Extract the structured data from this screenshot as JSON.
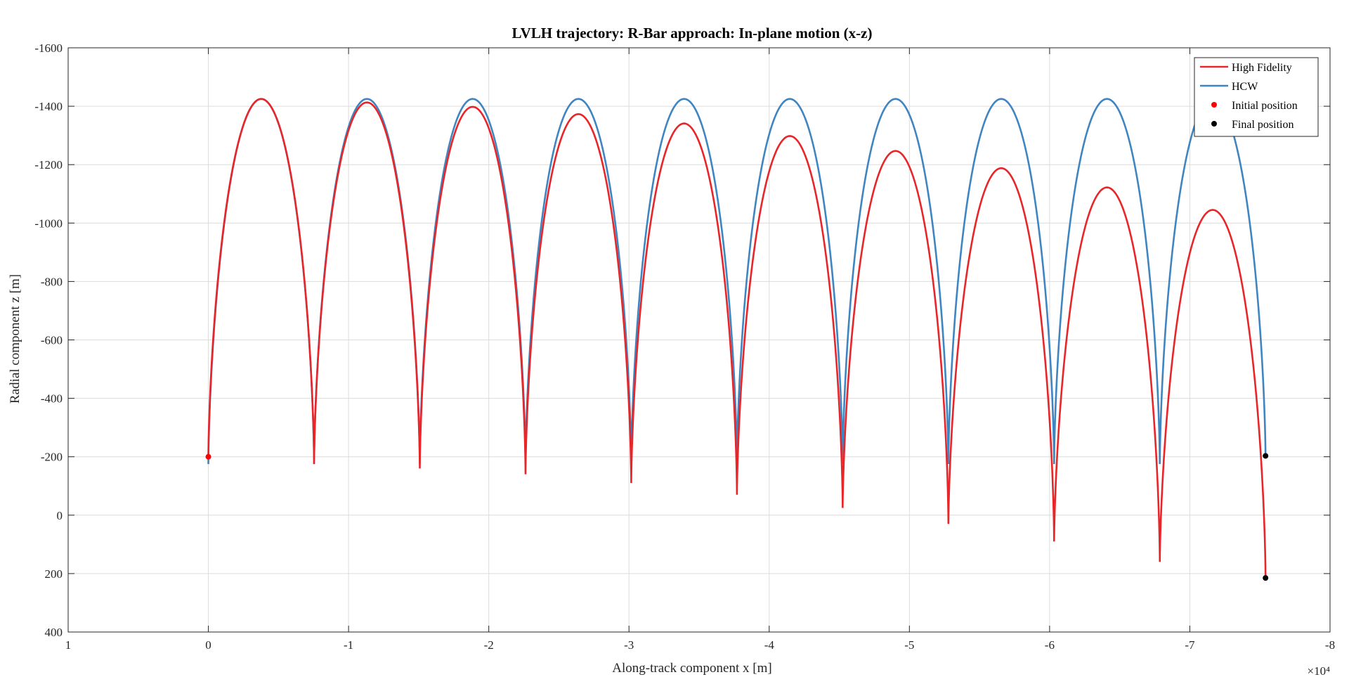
{
  "chart_data": {
    "type": "line",
    "title": "LVLH trajectory: R-Bar approach: In-plane motion (x-z)",
    "xlabel": "Along-track component x [m]",
    "ylabel": "Radial component z [m]",
    "x_exponent_label": "×10⁴",
    "x_scale_factor": 10000,
    "xlim": [
      1,
      -8
    ],
    "x_reversed": true,
    "ylim": [
      400,
      -1600
    ],
    "y_reversed": true,
    "grid": true,
    "legend_placement": "top-right",
    "x_ticks": [
      "1",
      "0",
      "-1",
      "-2",
      "-3",
      "-4",
      "-5",
      "-6",
      "-7",
      "-8"
    ],
    "y_ticks": [
      "-1600",
      "-1400",
      "-1200",
      "-1000",
      "-800",
      "-600",
      "-400",
      "-200",
      "0",
      "200",
      "400"
    ],
    "legend": [
      "High Fidelity",
      "HCW",
      "Initial position",
      "Final position"
    ],
    "colors": {
      "high_fidelity": "#e8262a",
      "hcw": "#3f85c1",
      "initial": "#ff0000",
      "final": "#000000"
    },
    "series": [
      {
        "name": "HCW",
        "arc_starts_x": [
          0,
          -7540,
          -15080,
          -22620,
          -30160,
          -37700,
          -45240,
          -52780,
          -60320,
          -67860
        ],
        "arc_width_x": 7540,
        "arc_base_z": [
          -175,
          -175,
          -175,
          -175,
          -175,
          -175,
          -175,
          -175,
          -175,
          -175
        ],
        "arc_peak_z": [
          -1425,
          -1425,
          -1425,
          -1425,
          -1425,
          -1425,
          -1425,
          -1425,
          -1425,
          -1425
        ],
        "last_arc_end": {
          "x": -75400,
          "z": -200
        }
      },
      {
        "name": "High Fidelity",
        "arc_starts_x": [
          0,
          -7540,
          -15080,
          -22620,
          -30160,
          -37700,
          -45240,
          -52780,
          -60320,
          -67860
        ],
        "arc_width_x": 7540,
        "arc_base_z": [
          -200,
          -175,
          -160,
          -140,
          -110,
          -70,
          -25,
          30,
          90,
          160
        ],
        "arc_peak_z": [
          -1425,
          -1413,
          -1398,
          -1373,
          -1341,
          -1298,
          -1247,
          -1188,
          -1122,
          -1045
        ],
        "last_arc_end": {
          "x": -75400,
          "z": 215
        }
      }
    ],
    "points": [
      {
        "name": "Initial position",
        "x": 0,
        "z": -200
      },
      {
        "name": "Final position",
        "x": -75400,
        "z": -203
      },
      {
        "name": "Final position",
        "x": -75400,
        "z": 215
      }
    ]
  }
}
